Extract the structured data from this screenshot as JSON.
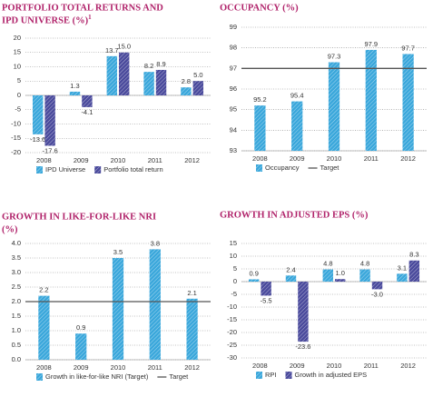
{
  "chart_data": [
    {
      "type": "bar",
      "title": [
        "PORTFOLIO TOTAL RETURNS AND",
        "IPD UNIVERSE (%)"
      ],
      "footnote_mark": "1",
      "categories": [
        "2008",
        "2009",
        "2010",
        "2011",
        "2012"
      ],
      "series": [
        {
          "name": "IPD Universe",
          "color": "#3aa7db",
          "values": [
            -13.6,
            1.3,
            13.7,
            8.2,
            2.8
          ],
          "value_labels": [
            "-13.6",
            "1.3",
            "13.7",
            "8.2",
            "2.8"
          ]
        },
        {
          "name": "Portfolio total return",
          "color": "#4a4a9c",
          "values": [
            -17.6,
            -4.1,
            15.0,
            8.9,
            5.0
          ],
          "value_labels": [
            "-17.6",
            "-4.1",
            "15.0",
            "8.9",
            "5.0"
          ]
        }
      ],
      "ylim": [
        -20,
        20
      ],
      "yticks": [
        -20,
        -15,
        -10,
        -5,
        0,
        5,
        10,
        15,
        20
      ],
      "grid": true
    },
    {
      "type": "bar",
      "title": [
        "OCCUPANCY (%)"
      ],
      "categories": [
        "2008",
        "2009",
        "2010",
        "2011",
        "2012"
      ],
      "series": [
        {
          "name": "Occupancy",
          "color": "#3aa7db",
          "values": [
            95.2,
            95.4,
            97.3,
            97.9,
            97.7
          ]
        }
      ],
      "target": {
        "name": "Target",
        "value": 97,
        "color": "#555555"
      },
      "ylim": [
        93,
        99
      ],
      "yticks": [
        93,
        94,
        95,
        96,
        97,
        98,
        99
      ],
      "grid": true
    },
    {
      "type": "bar",
      "title": [
        "GROWTH IN LIKE-FOR-LIKE NRI",
        "(%)"
      ],
      "categories": [
        "2008",
        "2009",
        "2010",
        "2011",
        "2012"
      ],
      "series": [
        {
          "name": "Growth in like-for-like NRI (Target)",
          "color": "#3aa7db",
          "values": [
            2.2,
            0.9,
            3.5,
            3.8,
            2.1
          ]
        }
      ],
      "target": {
        "name": "Target",
        "value": 2,
        "color": "#555555"
      },
      "ylim": [
        0,
        4
      ],
      "yticks": [
        {
          "value": 0,
          "label": "0.0"
        },
        0.5,
        {
          "value": 1,
          "label": "1.0"
        },
        1.5,
        {
          "value": 2,
          "label": "2.0"
        },
        2.5,
        {
          "value": 3,
          "label": "3.0"
        },
        3.5,
        {
          "value": 4,
          "label": "4.0"
        }
      ],
      "grid": true
    },
    {
      "type": "bar",
      "title": [
        "GROWTH IN ADJUSTED EPS (%)"
      ],
      "categories": [
        "2008",
        "2009",
        "2010",
        "2011",
        "2012"
      ],
      "series": [
        {
          "name": "RPI",
          "color": "#3aa7db",
          "values": [
            0.9,
            2.4,
            4.8,
            4.8,
            3.1
          ]
        },
        {
          "name": "Growth in adjusted EPS",
          "color": "#4a4a9c",
          "values": [
            -5.5,
            -23.6,
            1.0,
            -3.0,
            8.3
          ],
          "value_labels": [
            "-5.5",
            "-23.6",
            "1.0",
            "-3.0",
            "8.3"
          ]
        }
      ],
      "ylim": [
        -30,
        15
      ],
      "yticks": [
        -30,
        -25,
        -20,
        -15,
        -10,
        -5,
        0,
        5,
        10,
        15
      ],
      "grid": true
    }
  ]
}
